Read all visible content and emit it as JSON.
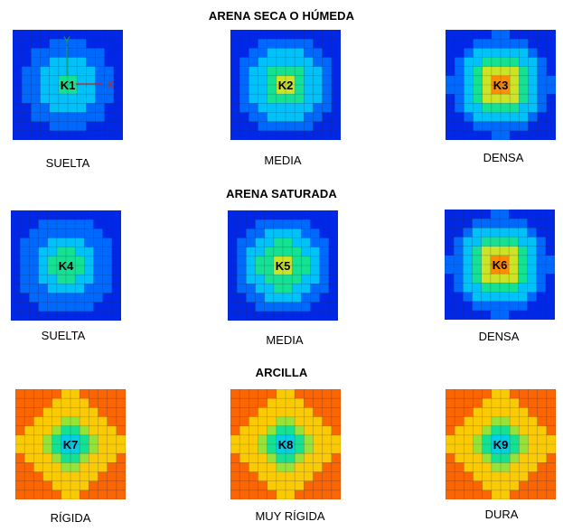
{
  "sections": [
    {
      "title": "ARENA SECA O HÚMEDA",
      "plates": [
        {
          "id": "K1",
          "caption": "SUELTA",
          "pattern": "sand",
          "intensity": 0.55
        },
        {
          "id": "K2",
          "caption": "MEDIA",
          "pattern": "sand",
          "intensity": 0.78
        },
        {
          "id": "K3",
          "caption": "DENSA",
          "pattern": "sand",
          "intensity": 1.0
        }
      ]
    },
    {
      "title": "ARENA SATURADA",
      "plates": [
        {
          "id": "K4",
          "caption": "SUELTA",
          "pattern": "sand",
          "intensity": 0.6
        },
        {
          "id": "K5",
          "caption": "MEDIA",
          "pattern": "sand",
          "intensity": 0.8
        },
        {
          "id": "K6",
          "caption": "DENSA",
          "pattern": "sand",
          "intensity": 1.0
        }
      ]
    },
    {
      "title": "ARCILLA",
      "plates": [
        {
          "id": "K7",
          "caption": "RÍGIDA",
          "pattern": "clay",
          "intensity": 0.55
        },
        {
          "id": "K8",
          "caption": "MUY RÍGIDA",
          "pattern": "clay",
          "intensity": 0.4
        },
        {
          "id": "K9",
          "caption": "DURA",
          "pattern": "clay",
          "intensity": 0.3
        }
      ]
    }
  ],
  "axis_labels": {
    "y": "Y",
    "x": "X"
  }
}
